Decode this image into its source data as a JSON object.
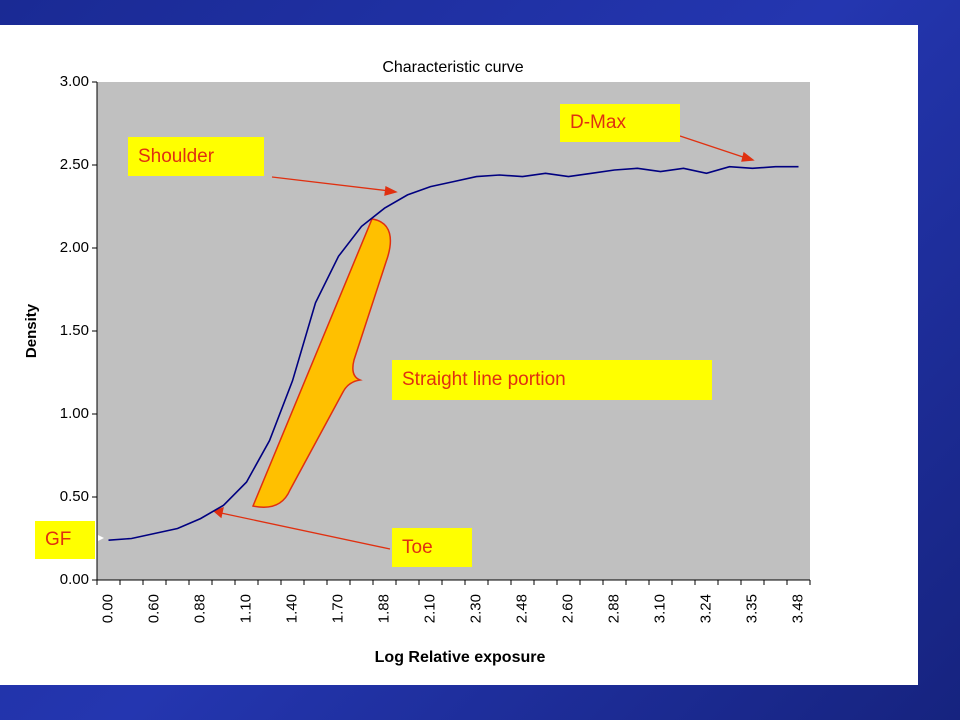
{
  "chart_data": {
    "type": "line",
    "title": "Characteristic curve",
    "x_label": "Log Relative exposure",
    "y_label": "Density",
    "categories": [
      "0.00",
      null,
      "0.60",
      null,
      "0.88",
      null,
      "1.10",
      null,
      "1.40",
      null,
      "1.70",
      null,
      "1.88",
      null,
      "2.10",
      null,
      "2.30",
      null,
      "2.48",
      null,
      "2.60",
      null,
      "2.88",
      null,
      "3.10",
      null,
      "3.24",
      null,
      "3.35",
      null,
      "3.48"
    ],
    "series": [
      {
        "name": "Density",
        "color": "#000080",
        "values": [
          0.24,
          0.25,
          0.28,
          0.31,
          0.37,
          0.45,
          0.59,
          0.84,
          1.2,
          1.67,
          1.95,
          2.13,
          2.24,
          2.32,
          2.37,
          2.4,
          2.43,
          2.44,
          2.43,
          2.45,
          2.43,
          2.45,
          2.47,
          2.48,
          2.46,
          2.48,
          2.45,
          2.49,
          2.48,
          2.49,
          2.49
        ]
      }
    ],
    "ylim": [
      0,
      3
    ],
    "yticks": [
      {
        "value": 0,
        "label": "0.00"
      },
      {
        "value": 0.5,
        "label": "0.50"
      },
      {
        "value": 1,
        "label": "1.00"
      },
      {
        "value": 1.5,
        "label": "1.50"
      },
      {
        "value": 2,
        "label": "2.00"
      },
      {
        "value": 2.5,
        "label": "2.50"
      },
      {
        "value": 3,
        "label": "3.00"
      }
    ],
    "grid": false,
    "annotations": [
      "Shoulder",
      "D-Max",
      "Straight line portion",
      "Toe",
      "GF"
    ]
  }
}
